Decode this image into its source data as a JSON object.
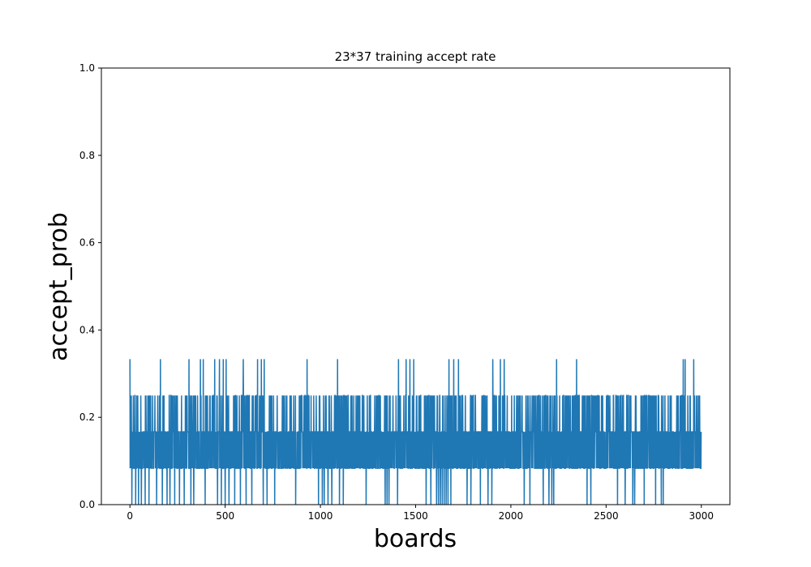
{
  "chart_data": {
    "type": "line",
    "title": "23*37 training accept rate",
    "xlabel": "boards",
    "ylabel": "accept_prob",
    "xlim": [
      -150,
      3150
    ],
    "ylim": [
      0.0,
      1.0
    ],
    "xticks": [
      0,
      500,
      1000,
      1500,
      2000,
      2500,
      3000
    ],
    "xtick_labels": [
      "0",
      "500",
      "1000",
      "1500",
      "2000",
      "2500",
      "3000"
    ],
    "yticks": [
      0.0,
      0.2,
      0.4,
      0.6,
      0.8,
      1.0
    ],
    "ytick_labels": [
      "0.0",
      "0.2",
      "0.4",
      "0.6",
      "0.8",
      "1.0"
    ],
    "grid": false,
    "series": [
      {
        "color": "#1f77b4",
        "x_start": 0,
        "x_end": 2999,
        "level_values": [
          0.0,
          0.0833,
          0.1667,
          0.25,
          0.3333
        ],
        "description": "accept rate per board, fluctuating among discrete levels 0, 1/12, 1/6, 1/4, 1/3",
        "spikes_to_0_333": [
          0,
          160,
          310,
          370,
          385,
          445,
          470,
          490,
          505,
          595,
          670,
          690,
          705,
          930,
          1090,
          1410,
          1450,
          1470,
          1490,
          1675,
          1700,
          1725,
          1905,
          1945,
          1965,
          2240,
          2345,
          2905,
          2915,
          2960
        ],
        "drops_to_0": [
          10,
          30,
          45,
          60,
          80,
          100,
          140,
          170,
          195,
          210,
          235,
          260,
          285,
          320,
          335,
          395,
          460,
          480,
          500,
          520,
          550,
          580,
          610,
          640,
          700,
          720,
          760,
          870,
          990,
          1010,
          1020,
          1040,
          1060,
          1100,
          1120,
          1240,
          1340,
          1350,
          1360,
          1405,
          1555,
          1580,
          1610,
          1620,
          1630,
          1640,
          1650,
          1660,
          1670,
          1685,
          1770,
          1790,
          1840,
          1880,
          1900,
          2070,
          2100,
          2170,
          2200,
          2215,
          2225,
          2400,
          2420,
          2560,
          2600,
          2640,
          2650,
          2700,
          2760,
          2790,
          2800
        ]
      }
    ]
  }
}
